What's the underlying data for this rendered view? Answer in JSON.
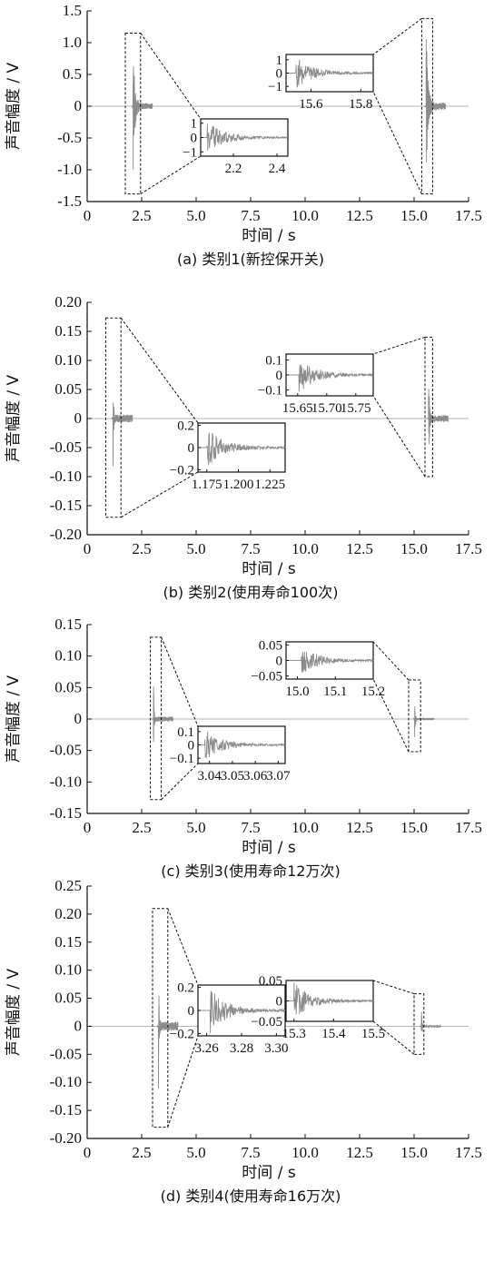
{
  "chart_data": [
    {
      "type": "line",
      "caption": "(a)  类别1(新控保开关)",
      "xlabel": "时间 / s",
      "ylabel": "声音幅度 / V",
      "xlim": [
        0,
        17.5
      ],
      "ylim": [
        -1.5,
        1.5
      ],
      "xticks": [
        0,
        2.5,
        5.0,
        7.5,
        10.0,
        12.5,
        15.0,
        17.5
      ],
      "xtick_labels": [
        "0",
        "2.5",
        "5.0",
        "7.5",
        "10.0",
        "12.5",
        "15.0",
        "17.5"
      ],
      "yticks": [
        1.5,
        1.0,
        0.5,
        0,
        -0.5,
        -1.0,
        -1.5
      ],
      "ytick_labels": [
        "1.5",
        "1.0",
        "0.5",
        "0",
        "-0.5",
        "-1.0",
        "-1.5"
      ],
      "events": [
        {
          "t": 2.1,
          "peak": 1.15,
          "tau": 0.08
        },
        {
          "t": 15.55,
          "peak": 1.35,
          "tau": 0.08
        }
      ],
      "zoom_windows": [
        {
          "x": [
            1.75,
            2.45
          ],
          "y": [
            -1.38,
            1.15
          ]
        },
        {
          "x": [
            15.35,
            15.85
          ],
          "y": [
            -1.38,
            1.38
          ]
        }
      ],
      "insets": [
        {
          "xlim": [
            2.05,
            2.45
          ],
          "ylim": [
            -1.3,
            1.3
          ],
          "t0": 2.08,
          "peak": 1.1,
          "tau": 0.12,
          "xticks": [
            2.2,
            2.4
          ],
          "xtick_labels": [
            "2.2",
            "2.4"
          ],
          "yticks": [
            1,
            0,
            -1
          ],
          "ytick_labels": [
            "1",
            "0",
            "−1"
          ]
        },
        {
          "xlim": [
            15.5,
            15.85
          ],
          "ylim": [
            -1.4,
            1.4
          ],
          "t0": 15.54,
          "peak": 1.2,
          "tau": 0.12,
          "xticks": [
            15.6,
            15.8
          ],
          "xtick_labels": [
            "15.6",
            "15.8"
          ],
          "yticks": [
            1,
            0,
            -1
          ],
          "ytick_labels": [
            "1",
            "0",
            "−1"
          ]
        }
      ]
    },
    {
      "type": "line",
      "caption": "(b)  类别2(使用寿命100次)",
      "xlabel": "时间 / s",
      "ylabel": "声音幅度 / V",
      "xlim": [
        0,
        17.5
      ],
      "ylim": [
        -0.2,
        0.2
      ],
      "xticks": [
        0,
        2.5,
        5.0,
        7.5,
        10.0,
        12.5,
        15.0,
        17.5
      ],
      "xtick_labels": [
        "0",
        "2.5",
        "5.0",
        "7.5",
        "10.0",
        "12.5",
        "15.0",
        "17.5"
      ],
      "yticks": [
        0.2,
        0.15,
        0.1,
        0.05,
        0,
        -0.05,
        -0.1,
        -0.15,
        -0.2
      ],
      "ytick_labels": [
        "0.20",
        "0.15",
        "0.10",
        "0.05",
        "0",
        "-0.05",
        "-0.10",
        "-0.15",
        "-0.20"
      ],
      "events": [
        {
          "t": 1.18,
          "peak": 0.17,
          "tau": 0.02
        },
        {
          "t": 15.66,
          "peak": 0.14,
          "tau": 0.03
        }
      ],
      "zoom_windows": [
        {
          "x": [
            0.85,
            1.55
          ],
          "y": [
            -0.17,
            0.173
          ]
        },
        {
          "x": [
            15.5,
            15.85
          ],
          "y": [
            -0.1,
            0.14
          ]
        }
      ],
      "insets": [
        {
          "xlim": [
            1.168,
            1.237
          ],
          "ylim": [
            -0.22,
            0.22
          ],
          "t0": 1.175,
          "peak": 0.19,
          "tau": 0.012,
          "xticks": [
            1.175,
            1.2,
            1.225
          ],
          "xtick_labels": [
            "1.175",
            "1.200",
            "1.225"
          ],
          "yticks": [
            0.2,
            0,
            -0.2
          ],
          "ytick_labels": [
            "0.2",
            "0",
            "−0.2"
          ]
        },
        {
          "xlim": [
            15.63,
            15.78
          ],
          "ylim": [
            -0.14,
            0.14
          ],
          "t0": 15.652,
          "peak": 0.12,
          "tau": 0.02,
          "xticks": [
            15.65,
            15.7,
            15.75
          ],
          "xtick_labels": [
            "15.65",
            "15.70",
            "15.75"
          ],
          "yticks": [
            0.1,
            0,
            -0.1
          ],
          "ytick_labels": [
            "0.1",
            "0",
            "−0.1"
          ]
        }
      ]
    },
    {
      "type": "line",
      "caption": "(c)  类别3(使用寿命12万次)",
      "xlabel": "时间 / s",
      "ylabel": "声音幅度 / V",
      "xlim": [
        0,
        17.5
      ],
      "ylim": [
        -0.15,
        0.15
      ],
      "xticks": [
        0,
        2.5,
        5.0,
        7.5,
        10.0,
        12.5,
        15.0,
        17.5
      ],
      "xtick_labels": [
        "0",
        "2.5",
        "5.0",
        "7.5",
        "10.0",
        "12.5",
        "15.0",
        "17.5"
      ],
      "yticks": [
        0.15,
        0.1,
        0.05,
        0,
        -0.05,
        -0.1,
        -0.15
      ],
      "ytick_labels": [
        "0.15",
        "0.10",
        "0.05",
        "0",
        "-0.05",
        "-0.10",
        "-0.15"
      ],
      "events": [
        {
          "t": 3.04,
          "peak": 0.1,
          "tau": 0.02
        },
        {
          "t": 15.02,
          "peak": 0.04,
          "tau": 0.03
        }
      ],
      "zoom_windows": [
        {
          "x": [
            2.9,
            3.4
          ],
          "y": [
            -0.128,
            0.13
          ]
        },
        {
          "x": [
            14.75,
            15.3
          ],
          "y": [
            -0.052,
            0.062
          ]
        }
      ],
      "insets": [
        {
          "xlim": [
            3.035,
            3.073
          ],
          "ylim": [
            -0.14,
            0.14
          ],
          "t0": 3.038,
          "peak": 0.12,
          "tau": 0.01,
          "xticks": [
            3.04,
            3.05,
            3.06,
            3.07
          ],
          "xtick_labels": [
            "3.04",
            "3.05",
            "3.06",
            "3.07"
          ],
          "yticks": [
            0.1,
            0,
            -0.1
          ],
          "ytick_labels": [
            "0.1",
            "0",
            "−0.1"
          ]
        },
        {
          "xlim": [
            14.97,
            15.2
          ],
          "ylim": [
            -0.06,
            0.06
          ],
          "t0": 15.01,
          "peak": 0.05,
          "tau": 0.04,
          "xticks": [
            15.0,
            15.1,
            15.2
          ],
          "xtick_labels": [
            "15.0",
            "15.1",
            "15.2"
          ],
          "yticks": [
            0.05,
            0,
            -0.05
          ],
          "ytick_labels": [
            "0.05",
            "0",
            "−0.05"
          ]
        }
      ]
    },
    {
      "type": "line",
      "caption": "(d)  类别4(使用寿命16万次)",
      "xlabel": "时间 / s",
      "ylabel": "声音幅度 / V",
      "xlim": [
        0,
        17.5
      ],
      "ylim": [
        -0.2,
        0.25
      ],
      "xticks": [
        0,
        2.5,
        5.0,
        7.5,
        10.0,
        12.5,
        15.0,
        17.5
      ],
      "xtick_labels": [
        "0",
        "2.5",
        "5.0",
        "7.5",
        "10.0",
        "12.5",
        "15.0",
        "17.5"
      ],
      "yticks": [
        0.25,
        0.2,
        0.15,
        0.1,
        0.05,
        0,
        -0.05,
        -0.1,
        -0.15,
        -0.2
      ],
      "ytick_labels": [
        "0.25",
        "0.20",
        "0.15",
        "0.10",
        "0.05",
        "0",
        "-0.05",
        "-0.10",
        "-0.15",
        "-0.20"
      ],
      "events": [
        {
          "t": 3.27,
          "peak": 0.2,
          "tau": 0.02
        },
        {
          "t": 15.33,
          "peak": 0.04,
          "tau": 0.03
        }
      ],
      "zoom_windows": [
        {
          "x": [
            3.0,
            3.7
          ],
          "y": [
            -0.18,
            0.21
          ]
        },
        {
          "x": [
            15.0,
            15.45
          ],
          "y": [
            -0.05,
            0.058
          ]
        }
      ],
      "insets": [
        {
          "xlim": [
            3.255,
            3.305
          ],
          "ylim": [
            -0.22,
            0.22
          ],
          "t0": 3.262,
          "peak": 0.19,
          "tau": 0.012,
          "xticks": [
            3.26,
            3.28,
            3.3
          ],
          "xtick_labels": [
            "3.26",
            "3.28",
            "3.30"
          ],
          "yticks": [
            0.2,
            0,
            -0.2
          ],
          "ytick_labels": [
            "0.2",
            "0",
            "−0.2"
          ]
        },
        {
          "xlim": [
            15.28,
            15.5
          ],
          "ylim": [
            -0.05,
            0.05
          ],
          "t0": 15.3,
          "peak": 0.045,
          "tau": 0.04,
          "xticks": [
            15.3,
            15.4,
            15.5
          ],
          "xtick_labels": [
            "15.3",
            "15.4",
            "15.5"
          ],
          "yticks": [
            0.05,
            0,
            -0.05
          ],
          "ytick_labels": [
            "0.05",
            "0",
            "−0.05"
          ]
        }
      ]
    }
  ]
}
